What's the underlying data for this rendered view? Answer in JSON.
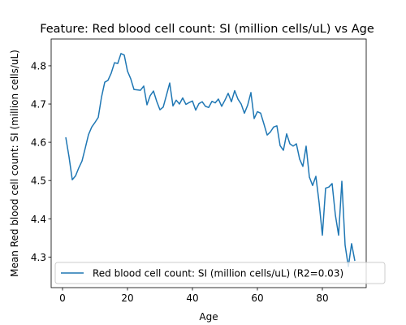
{
  "chart_data": {
    "type": "line",
    "title": "Feature: Red blood cell count: SI (million cells/uL) vs Age",
    "xlabel": "Age",
    "ylabel": "Mean Red blood cell count: SI (million cells/uL)",
    "xlim": [
      -3.5,
      93.5
    ],
    "ylim": [
      4.22,
      4.87
    ],
    "xticks": [
      0,
      20,
      40,
      60,
      80
    ],
    "yticks": [
      4.3,
      4.4,
      4.5,
      4.6,
      4.7,
      4.8
    ],
    "ytick_labels": [
      "4.3",
      "4.4",
      "4.5",
      "4.6",
      "4.7",
      "4.8"
    ],
    "grid": false,
    "legend_position": "lower-left",
    "series": [
      {
        "name": "Red blood cell count: SI (million cells/uL) (R2=0.03)",
        "color": "#1f77b4",
        "x": [
          1,
          2,
          3,
          4,
          5,
          6,
          7,
          8,
          9,
          10,
          11,
          12,
          13,
          14,
          15,
          16,
          17,
          18,
          19,
          20,
          21,
          22,
          23,
          24,
          25,
          26,
          27,
          28,
          29,
          30,
          31,
          32,
          33,
          34,
          35,
          36,
          37,
          38,
          39,
          40,
          41,
          42,
          43,
          44,
          45,
          46,
          47,
          48,
          49,
          50,
          51,
          52,
          53,
          54,
          55,
          56,
          57,
          58,
          59,
          60,
          61,
          62,
          63,
          64,
          65,
          66,
          67,
          68,
          69,
          70,
          71,
          72,
          73,
          74,
          75,
          76,
          77,
          78,
          79,
          80,
          81,
          82,
          83,
          84,
          85,
          86,
          87,
          88,
          89,
          90
        ],
        "y": [
          4.613,
          4.562,
          4.502,
          4.512,
          4.533,
          4.551,
          4.585,
          4.62,
          4.64,
          4.652,
          4.665,
          4.718,
          4.757,
          4.762,
          4.781,
          4.808,
          4.806,
          4.832,
          4.828,
          4.786,
          4.766,
          4.738,
          4.737,
          4.736,
          4.747,
          4.698,
          4.722,
          4.734,
          4.707,
          4.685,
          4.692,
          4.723,
          4.755,
          4.695,
          4.71,
          4.7,
          4.716,
          4.699,
          4.704,
          4.708,
          4.684,
          4.701,
          4.706,
          4.694,
          4.691,
          4.707,
          4.703,
          4.713,
          4.694,
          4.71,
          4.728,
          4.706,
          4.735,
          4.713,
          4.7,
          4.676,
          4.697,
          4.73,
          4.662,
          4.68,
          4.676,
          4.648,
          4.619,
          4.627,
          4.64,
          4.643,
          4.591,
          4.579,
          4.622,
          4.596,
          4.59,
          4.596,
          4.556,
          4.537,
          4.59,
          4.509,
          4.487,
          4.511,
          4.442,
          4.357,
          4.48,
          4.483,
          4.492,
          4.41,
          4.357,
          4.498,
          4.331,
          4.275,
          4.335,
          4.29
        ]
      }
    ]
  }
}
